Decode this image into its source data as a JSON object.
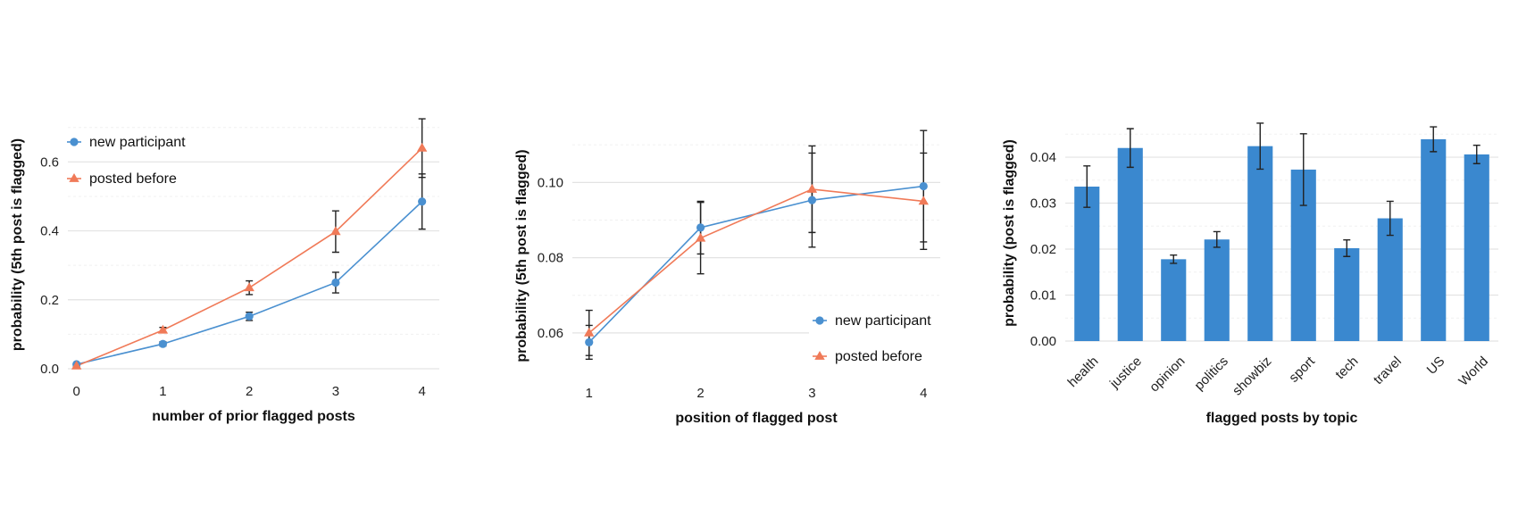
{
  "colors": {
    "blue": "#4a90d0",
    "orange": "#f07a58",
    "bar": "#3a88cf"
  },
  "chart_data": [
    {
      "type": "line",
      "xlabel": "number of prior flagged posts",
      "ylabel": "probability (5th post is flagged)",
      "x": [
        0,
        1,
        2,
        3,
        4
      ],
      "x_tick_labels": [
        "0",
        "1",
        "2",
        "3",
        "4"
      ],
      "y_ticks": [
        0.0,
        0.2,
        0.4,
        0.6
      ],
      "y_tick_labels": [
        "0.0",
        "0.2",
        "0.4",
        "0.6"
      ],
      "xlim": [
        -0.1,
        4.2
      ],
      "ylim": [
        0.0,
        0.72
      ],
      "legend_position": "top-left",
      "series": [
        {
          "name": "new participant",
          "marker": "circle",
          "color": "#4a90d0",
          "values": [
            0.013,
            0.072,
            0.152,
            0.25,
            0.485
          ],
          "error": [
            0.003,
            0.006,
            0.012,
            0.03,
            0.08
          ]
        },
        {
          "name": "posted before",
          "marker": "triangle",
          "color": "#f07a58",
          "values": [
            0.008,
            0.112,
            0.235,
            0.398,
            0.64
          ],
          "error": [
            0.002,
            0.008,
            0.02,
            0.06,
            0.085
          ]
        }
      ]
    },
    {
      "type": "line",
      "xlabel": "position of flagged post",
      "ylabel": "probability (5th post is flagged)",
      "x": [
        1,
        2,
        3,
        4
      ],
      "x_tick_labels": [
        "1",
        "2",
        "3",
        "4"
      ],
      "y_ticks": [
        0.06,
        0.08,
        0.1
      ],
      "y_tick_labels": [
        "0.06",
        "0.08",
        "0.10"
      ],
      "xlim": [
        0.85,
        4.15
      ],
      "ylim": [
        0.05,
        0.111
      ],
      "legend_position": "bottom-right",
      "series": [
        {
          "name": "new participant",
          "marker": "circle",
          "color": "#4a90d0",
          "values": [
            0.0575,
            0.088,
            0.0953,
            0.099
          ],
          "error": [
            0.0045,
            0.007,
            0.0125,
            0.0148
          ]
        },
        {
          "name": "posted before",
          "marker": "triangle",
          "color": "#f07a58",
          "values": [
            0.06,
            0.0852,
            0.0982,
            0.095
          ],
          "error": [
            0.006,
            0.0095,
            0.0115,
            0.0128
          ]
        }
      ]
    },
    {
      "type": "bar",
      "xlabel": "flagged posts by topic",
      "ylabel": "probability (post is flagged)",
      "categories": [
        "health",
        "justice",
        "opinion",
        "politics",
        "showbiz",
        "sport",
        "tech",
        "travel",
        "US",
        "World"
      ],
      "values": [
        0.0336,
        0.042,
        0.0178,
        0.0221,
        0.0424,
        0.0373,
        0.0202,
        0.0267,
        0.0439,
        0.0406
      ],
      "error": [
        0.0045,
        0.0042,
        0.0009,
        0.0017,
        0.005,
        0.0078,
        0.0018,
        0.0037,
        0.0027,
        0.002
      ],
      "y_ticks": [
        0.0,
        0.01,
        0.02,
        0.03,
        0.04
      ],
      "y_tick_labels": [
        "0.00",
        "0.01",
        "0.02",
        "0.03",
        "0.04"
      ],
      "ylim": [
        0.0,
        0.047
      ]
    }
  ]
}
